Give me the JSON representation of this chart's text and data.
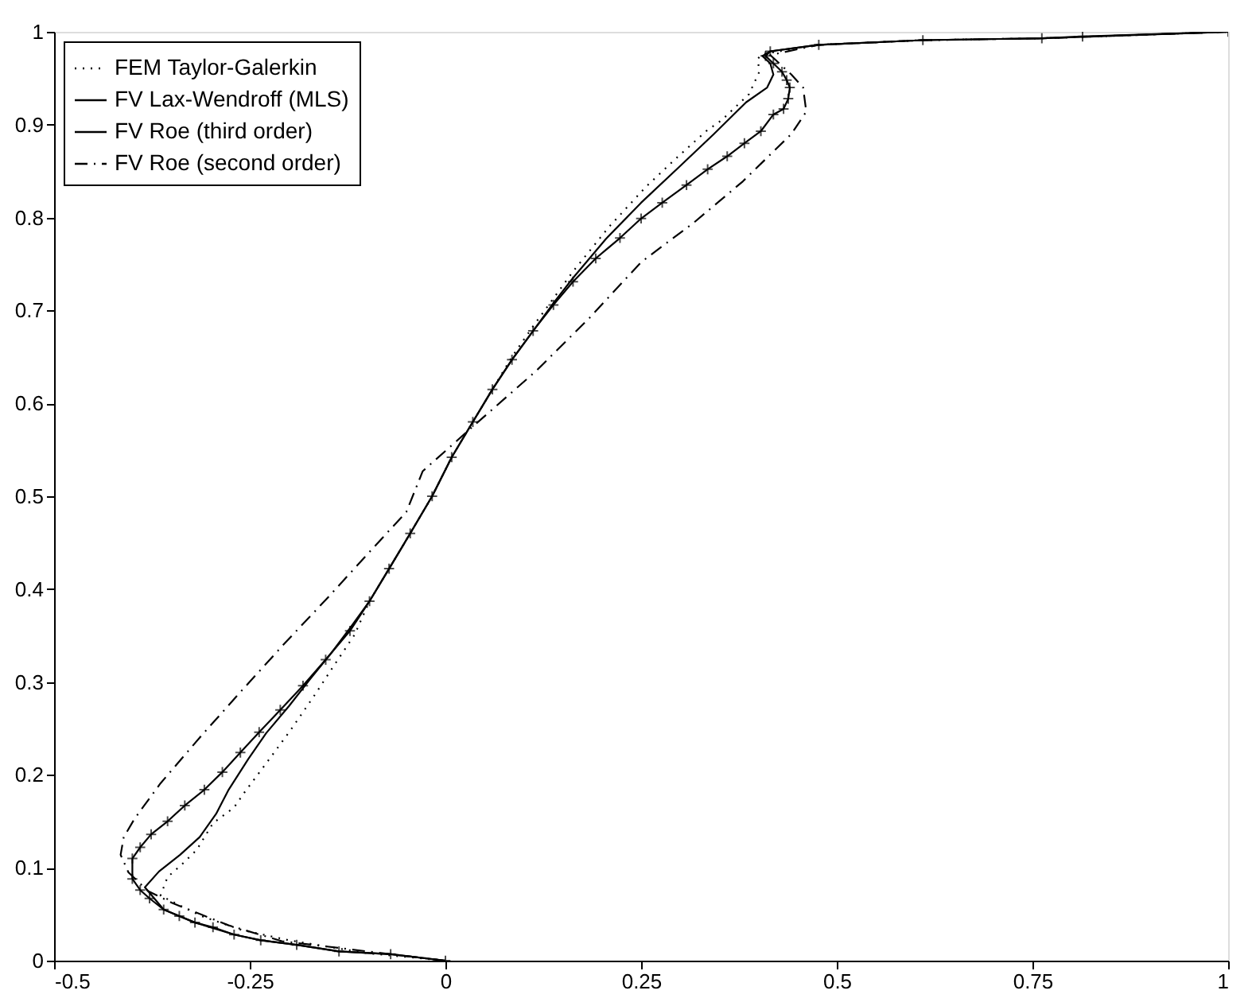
{
  "chart_data": {
    "type": "line",
    "xlim": [
      -0.5,
      1
    ],
    "xticks": [
      -0.5,
      -0.25,
      0,
      0.25,
      0.5,
      0.75,
      1
    ],
    "ylim": [
      0,
      1
    ],
    "yticks": [
      0,
      0.1,
      0.2,
      0.3,
      0.4,
      0.5,
      0.6,
      0.7,
      0.8,
      0.9,
      1
    ],
    "grid": false,
    "legend": "top left",
    "series": [
      {
        "name": "FEM Taylor-Galerkin",
        "color": "#000000",
        "line_style": "dotted",
        "marker": "none",
        "x": [
          0,
          -0.1,
          -0.2,
          -0.26,
          -0.312,
          -0.364,
          -0.355,
          -0.335,
          -0.318,
          -0.297,
          -0.27,
          -0.256,
          -0.225,
          -0.198,
          -0.167,
          -0.143,
          -0.116,
          -0.097,
          -0.072,
          -0.045,
          -0.017,
          0.008,
          0.035,
          0.06,
          0.085,
          0.112,
          0.138,
          0.163,
          0.209,
          0.256,
          0.295,
          0.333,
          0.353,
          0.388,
          0.401,
          0.399,
          0.405,
          0.477,
          0.61,
          0.762,
          1
        ],
        "values": [
          0,
          0.008,
          0.022,
          0.033,
          0.048,
          0.07,
          0.09,
          0.105,
          0.119,
          0.148,
          0.165,
          0.182,
          0.217,
          0.248,
          0.286,
          0.317,
          0.351,
          0.387,
          0.422,
          0.46,
          0.5,
          0.542,
          0.58,
          0.615,
          0.65,
          0.683,
          0.713,
          0.742,
          0.79,
          0.833,
          0.864,
          0.893,
          0.905,
          0.933,
          0.957,
          0.971,
          0.976,
          0.986,
          0.991,
          0.993,
          1
        ]
      },
      {
        "name": "FV Lax-Wendroff (MLS)",
        "color": "#000000",
        "line_style": "solid",
        "marker": "none",
        "x": [
          0,
          -0.07,
          -0.136,
          -0.19,
          -0.236,
          -0.27,
          -0.32,
          -0.36,
          -0.384,
          -0.366,
          -0.339,
          -0.314,
          -0.293,
          -0.277,
          -0.252,
          -0.229,
          -0.2,
          -0.173,
          -0.147,
          -0.122,
          -0.097,
          -0.072,
          -0.045,
          -0.017,
          0.008,
          0.035,
          0.06,
          0.085,
          0.112,
          0.138,
          0.163,
          0.205,
          0.25,
          0.298,
          0.343,
          0.384,
          0.411,
          0.419,
          0.415,
          0.405,
          0.415,
          0.477,
          0.61,
          0.762,
          1
        ],
        "values": [
          0,
          0.007,
          0.01,
          0.017,
          0.022,
          0.028,
          0.041,
          0.055,
          0.079,
          0.096,
          0.114,
          0.133,
          0.158,
          0.184,
          0.217,
          0.245,
          0.274,
          0.303,
          0.33,
          0.358,
          0.387,
          0.422,
          0.46,
          0.5,
          0.542,
          0.58,
          0.615,
          0.647,
          0.678,
          0.708,
          0.735,
          0.777,
          0.816,
          0.854,
          0.89,
          0.924,
          0.94,
          0.954,
          0.966,
          0.974,
          0.979,
          0.986,
          0.991,
          0.993,
          1
        ]
      },
      {
        "name": "FV Roe (third order)",
        "color": "#000000",
        "line_style": "solid",
        "marker": "cross",
        "x": [
          0,
          -0.07,
          -0.136,
          -0.19,
          -0.236,
          -0.27,
          -0.297,
          -0.32,
          -0.34,
          -0.36,
          -0.378,
          -0.39,
          -0.4,
          -0.4,
          -0.39,
          -0.376,
          -0.355,
          -0.333,
          -0.308,
          -0.285,
          -0.262,
          -0.238,
          -0.211,
          -0.182,
          -0.153,
          -0.122,
          -0.097,
          -0.072,
          -0.045,
          -0.017,
          0.008,
          0.035,
          0.06,
          0.085,
          0.112,
          0.138,
          0.163,
          0.192,
          0.223,
          0.25,
          0.277,
          0.308,
          0.335,
          0.36,
          0.382,
          0.403,
          0.419,
          0.432,
          0.438,
          0.44,
          0.436,
          0.43,
          0.419,
          0.409,
          0.415,
          0.477,
          0.61,
          0.762,
          0.814,
          1
        ],
        "values": [
          0,
          0.007,
          0.01,
          0.017,
          0.022,
          0.028,
          0.036,
          0.041,
          0.048,
          0.055,
          0.067,
          0.076,
          0.088,
          0.11,
          0.122,
          0.136,
          0.15,
          0.167,
          0.184,
          0.203,
          0.224,
          0.246,
          0.27,
          0.296,
          0.324,
          0.355,
          0.387,
          0.422,
          0.46,
          0.5,
          0.542,
          0.58,
          0.615,
          0.647,
          0.678,
          0.706,
          0.731,
          0.756,
          0.778,
          0.799,
          0.816,
          0.835,
          0.852,
          0.866,
          0.88,
          0.893,
          0.911,
          0.917,
          0.928,
          0.94,
          0.948,
          0.957,
          0.966,
          0.974,
          0.979,
          0.986,
          0.991,
          0.993,
          0.995,
          1
        ]
      },
      {
        "name": "FV Roe (second order)",
        "color": "#000000",
        "line_style": "dashed",
        "marker": "none",
        "x": [
          0,
          -0.1,
          -0.209,
          -0.277,
          -0.349,
          -0.38,
          -0.405,
          -0.415,
          -0.411,
          -0.397,
          -0.364,
          -0.312,
          -0.26,
          -0.205,
          -0.149,
          -0.097,
          -0.05,
          -0.029,
          0.039,
          0.116,
          0.184,
          0.25,
          0.318,
          0.38,
          0.442,
          0.461,
          0.457,
          0.442,
          0.415,
          0.477,
          0.61,
          0.762,
          1
        ],
        "values": [
          0,
          0.01,
          0.021,
          0.038,
          0.062,
          0.075,
          0.095,
          0.114,
          0.133,
          0.153,
          0.191,
          0.242,
          0.291,
          0.342,
          0.392,
          0.44,
          0.483,
          0.527,
          0.578,
          0.635,
          0.692,
          0.752,
          0.795,
          0.839,
          0.89,
          0.914,
          0.94,
          0.954,
          0.975,
          0.986,
          0.991,
          0.993,
          1
        ]
      }
    ]
  }
}
